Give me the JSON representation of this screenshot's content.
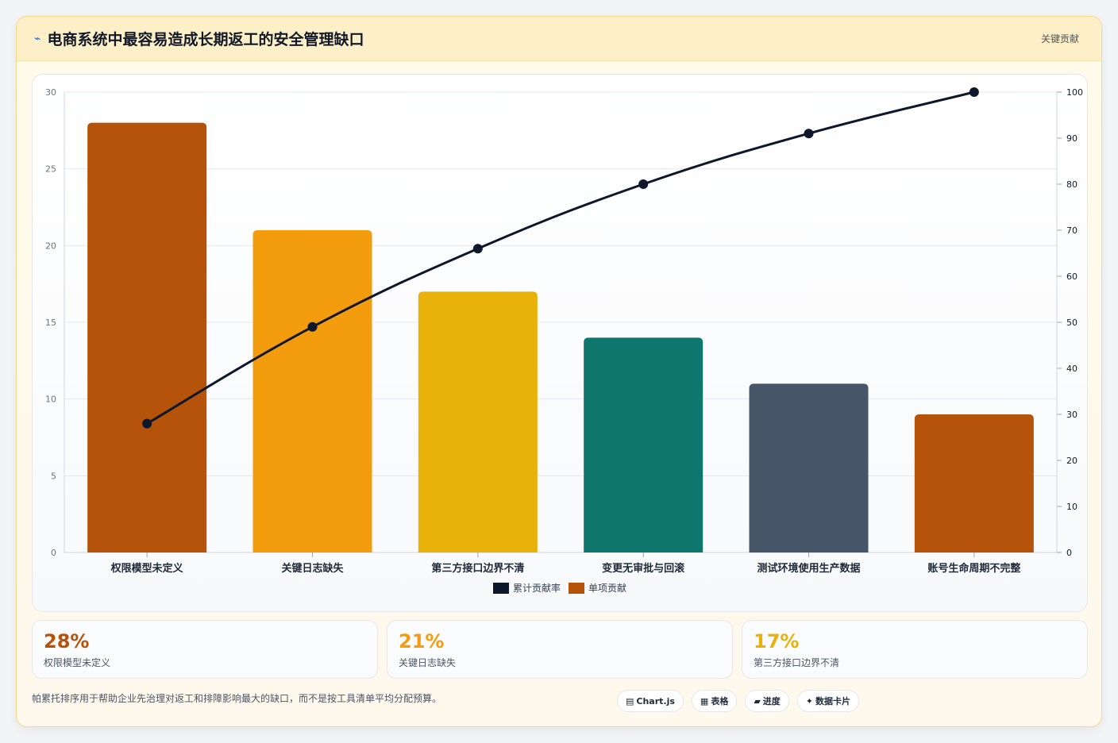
{
  "header": {
    "title": "电商系统中最容易造成长期返工的安全管理缺口",
    "icon": "spark-icon",
    "tag": "关键贡献"
  },
  "chart_data": {
    "type": "bar",
    "categories": [
      "权限模型未定义",
      "关键日志缺失",
      "第三方接口边界不清",
      "变更无审批与回滚",
      "测试环境使用生产数据",
      "账号生命周期不完整"
    ],
    "series": [
      {
        "name": "单项贡献",
        "type": "bar",
        "axis": "left",
        "values": [
          28,
          21,
          17,
          14,
          11,
          9
        ],
        "colors": [
          "#b45309",
          "#f29c0e",
          "#e8b20a",
          "#0f766e",
          "#475569",
          "#b45309"
        ]
      },
      {
        "name": "累计贡献率",
        "type": "line",
        "axis": "right",
        "values": [
          28,
          49,
          66,
          80,
          91,
          100
        ],
        "color": "#0f172a"
      }
    ],
    "ylim_left": [
      0,
      30
    ],
    "yticks_left": [
      0,
      5,
      10,
      15,
      20,
      25,
      30
    ],
    "ylim_right": [
      0,
      100
    ],
    "yticks_right": [
      0,
      10,
      20,
      30,
      40,
      50,
      60,
      70,
      80,
      90,
      100
    ],
    "grid": true,
    "legend": "bottom"
  },
  "legend": [
    {
      "label": "累计贡献率",
      "color": "#0f172a"
    },
    {
      "label": "单项贡献",
      "color": "#b45309"
    }
  ],
  "stats": [
    {
      "value": "28%",
      "label": "权限模型未定义",
      "color": "#b45309"
    },
    {
      "value": "21%",
      "label": "关键日志缺失",
      "color": "#f29c0e"
    },
    {
      "value": "17%",
      "label": "第三方接口边界不清",
      "color": "#e8b20a"
    }
  ],
  "footer": {
    "note": "帕累托排序用于帮助企业先治理对返工和排障影响最大的缺口，而不是按工具清单平均分配预算。",
    "tags": [
      {
        "icon": "▤",
        "label": "Chart.js"
      },
      {
        "icon": "▦",
        "label": "表格"
      },
      {
        "icon": "▰",
        "label": "进度"
      },
      {
        "icon": "✦",
        "label": "数据卡片"
      }
    ]
  }
}
